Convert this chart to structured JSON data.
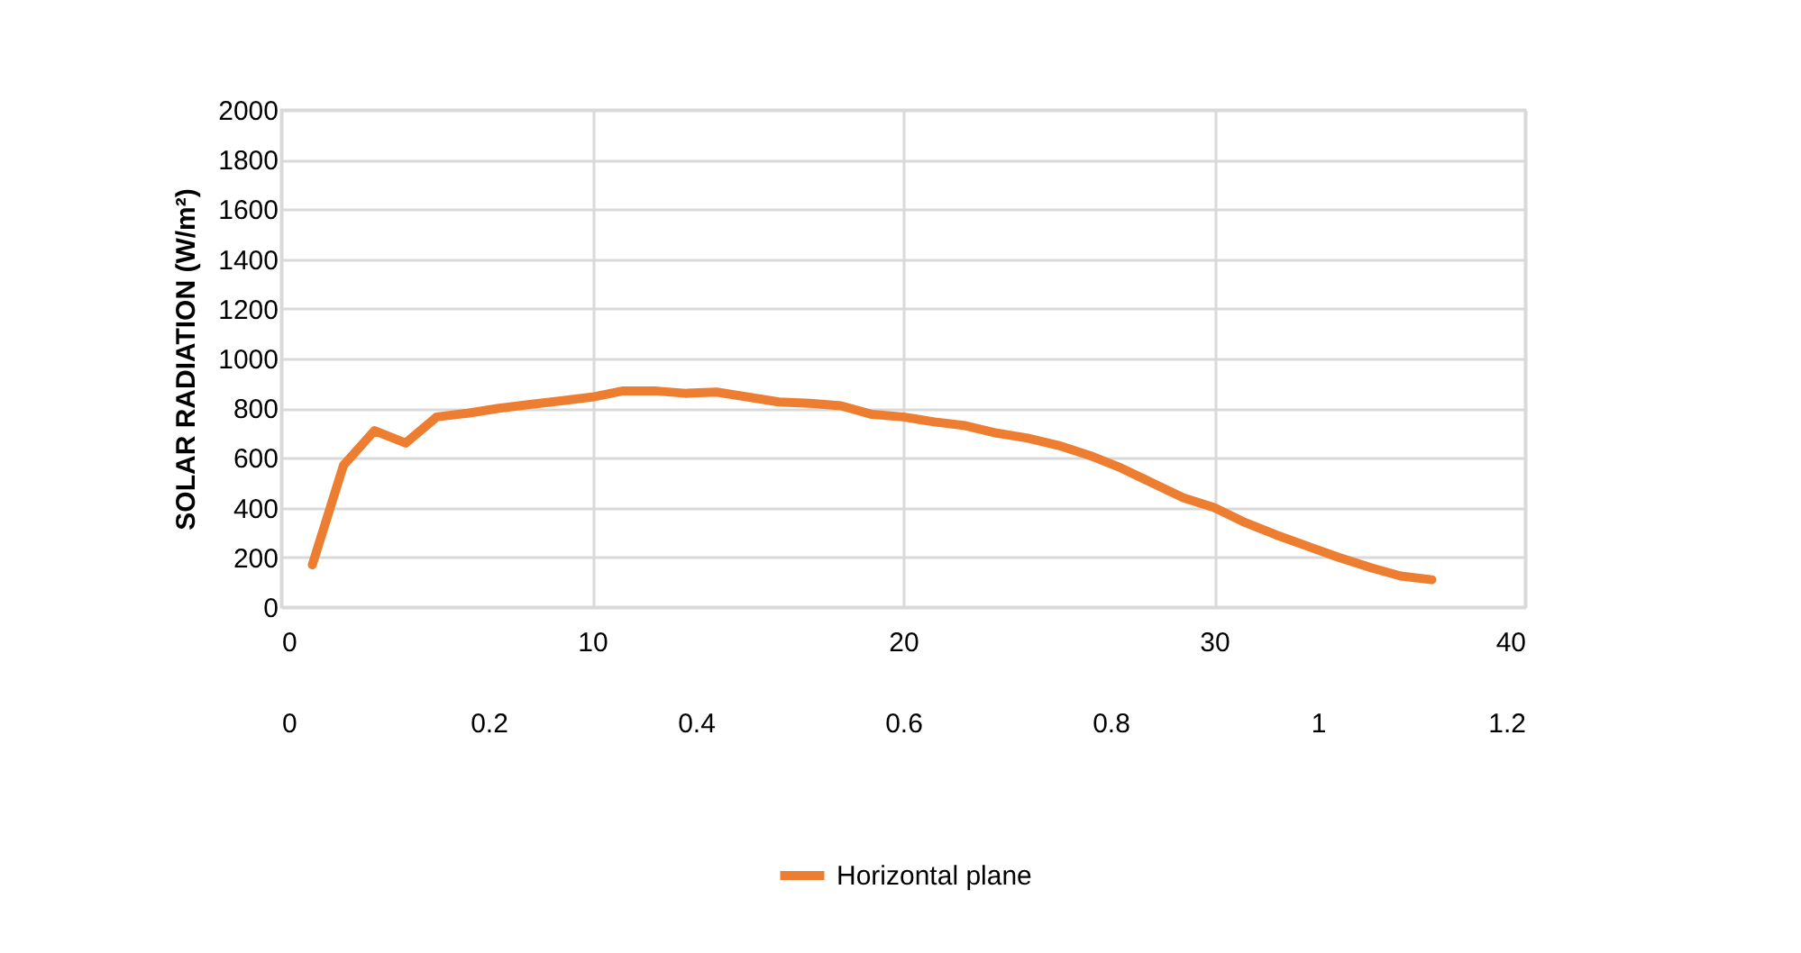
{
  "chart_data": {
    "type": "line",
    "ylabel": "SOLAR RADIATION (W/m²)",
    "x": [
      1,
      2,
      3,
      4,
      5,
      6,
      7,
      8,
      9,
      10,
      11,
      12,
      13,
      14,
      15,
      16,
      17,
      18,
      19,
      20,
      21,
      22,
      23,
      24,
      25,
      26,
      27,
      28,
      29,
      30,
      31,
      32,
      33,
      34,
      35,
      36,
      37
    ],
    "series": [
      {
        "name": "Horizontal plane",
        "color": "#ed7d31",
        "values": [
          170,
          570,
          710,
          660,
          765,
          780,
          800,
          815,
          830,
          845,
          870,
          870,
          860,
          865,
          845,
          825,
          820,
          810,
          775,
          765,
          745,
          730,
          700,
          680,
          650,
          610,
          560,
          500,
          440,
          400,
          340,
          290,
          245,
          200,
          160,
          125,
          110
        ]
      }
    ],
    "xlim": [
      0,
      40
    ],
    "xticks": [
      0,
      10,
      20,
      30,
      40
    ],
    "x2lim": [
      0,
      1.2
    ],
    "x2ticks": [
      0,
      0.2,
      0.4,
      0.6,
      0.8,
      1,
      1.2
    ],
    "ylim": [
      0,
      2000
    ],
    "yticks": [
      0,
      200,
      400,
      600,
      800,
      1000,
      1200,
      1400,
      1600,
      1800,
      2000
    ],
    "grid": true,
    "legend": "bottom",
    "line_style": "solid",
    "marker": "none"
  }
}
